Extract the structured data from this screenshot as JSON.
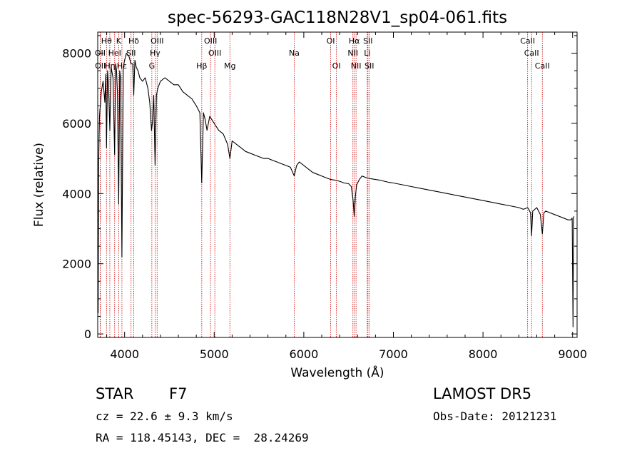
{
  "chart_data": {
    "type": "line",
    "title": "spec-56293-GAC118N28V1_sp04-061.fits",
    "xlabel": "Wavelength (Å)",
    "ylabel": "Flux (relative)",
    "xlim": [
      3700,
      9050
    ],
    "ylim": [
      -100,
      8600
    ],
    "xticks": [
      4000,
      5000,
      6000,
      7000,
      8000,
      9000
    ],
    "yticks": [
      0,
      2000,
      4000,
      6000,
      8000
    ],
    "line_color": "#000000",
    "marker_line_color": "#cc0000",
    "spectral_lines": [
      {
        "name": "Hθ",
        "wavelength": 3798,
        "row": 0
      },
      {
        "name": "K",
        "wavelength": 3934,
        "row": 0
      },
      {
        "name": "Hδ",
        "wavelength": 4102,
        "row": 0
      },
      {
        "name": "OIII",
        "wavelength": 4363,
        "row": 0
      },
      {
        "name": "OIII",
        "wavelength": 4959,
        "row": 0
      },
      {
        "name": "OI",
        "wavelength": 6300,
        "row": 0
      },
      {
        "name": "Hα",
        "wavelength": 6563,
        "row": 0
      },
      {
        "name": "SII",
        "wavelength": 6716,
        "row": 0
      },
      {
        "name": "CaII",
        "wavelength": 8498,
        "row": 0
      },
      {
        "name": "OII",
        "wavelength": 3727,
        "row": 1
      },
      {
        "name": "HeI",
        "wavelength": 3889,
        "row": 1
      },
      {
        "name": "SII",
        "wavelength": 4072,
        "row": 1
      },
      {
        "name": "Hγ",
        "wavelength": 4340,
        "row": 1
      },
      {
        "name": "OIII",
        "wavelength": 5007,
        "row": 1
      },
      {
        "name": "Na",
        "wavelength": 5893,
        "row": 1
      },
      {
        "name": "NII",
        "wavelength": 6548,
        "row": 1
      },
      {
        "name": "Li",
        "wavelength": 6708,
        "row": 1
      },
      {
        "name": "CaII",
        "wavelength": 8542,
        "row": 1
      },
      {
        "name": "OII",
        "wavelength": 3729,
        "row": 2
      },
      {
        "name": "Hη",
        "wavelength": 3835,
        "row": 2
      },
      {
        "name": "Hε",
        "wavelength": 3970,
        "row": 2
      },
      {
        "name": "G",
        "wavelength": 4304,
        "row": 2
      },
      {
        "name": "Hβ",
        "wavelength": 4861,
        "row": 2
      },
      {
        "name": "Mg",
        "wavelength": 5175,
        "row": 2
      },
      {
        "name": "OI",
        "wavelength": 6364,
        "row": 2
      },
      {
        "name": "NII",
        "wavelength": 6583,
        "row": 2
      },
      {
        "name": "SII",
        "wavelength": 6731,
        "row": 2
      },
      {
        "name": "CaII",
        "wavelength": 8662,
        "row": 2
      }
    ],
    "x": [
      3700,
      3705,
      3710,
      3715,
      3720,
      3725,
      3730,
      3735,
      3740,
      3760,
      3780,
      3790,
      3798,
      3810,
      3820,
      3835,
      3850,
      3870,
      3889,
      3900,
      3910,
      3920,
      3934,
      3945,
      3955,
      3970,
      3985,
      4000,
      4020,
      4050,
      4070,
      4090,
      4102,
      4115,
      4130,
      4150,
      4170,
      4200,
      4230,
      4260,
      4280,
      4300,
      4310,
      4325,
      4340,
      4355,
      4370,
      4400,
      4450,
      4500,
      4550,
      4600,
      4650,
      4700,
      4750,
      4800,
      4840,
      4861,
      4880,
      4900,
      4920,
      4950,
      5000,
      5050,
      5100,
      5150,
      5175,
      5200,
      5250,
      5300,
      5350,
      5400,
      5450,
      5500,
      5550,
      5600,
      5650,
      5700,
      5750,
      5800,
      5850,
      5893,
      5920,
      5950,
      6000,
      6050,
      6100,
      6150,
      6200,
      6250,
      6300,
      6350,
      6400,
      6450,
      6500,
      6530,
      6550,
      6563,
      6575,
      6590,
      6620,
      6650,
      6700,
      6750,
      6800,
      6850,
      6900,
      6950,
      7000,
      7100,
      7200,
      7300,
      7400,
      7500,
      7600,
      7700,
      7800,
      7900,
      8000,
      8100,
      8200,
      8300,
      8400,
      8450,
      8480,
      8498,
      8510,
      8530,
      8542,
      8555,
      8600,
      8640,
      8662,
      8680,
      8700,
      8750,
      8800,
      8850,
      8900,
      8950,
      8980,
      8995,
      9005,
      9010,
      9015
    ],
    "y": [
      2500,
      600,
      4800,
      5600,
      6200,
      6400,
      6500,
      6700,
      6900,
      7200,
      6600,
      7400,
      5300,
      7500,
      7100,
      5800,
      7600,
      7300,
      5100,
      7700,
      7500,
      6900,
      3700,
      7500,
      7300,
      2200,
      7600,
      7800,
      8000,
      7900,
      7700,
      7700,
      6800,
      7800,
      7600,
      7500,
      7300,
      7200,
      7300,
      7000,
      6600,
      5800,
      6000,
      6800,
      4800,
      6800,
      7000,
      7200,
      7300,
      7200,
      7100,
      7100,
      6900,
      6800,
      6700,
      6500,
      6300,
      4300,
      6300,
      6100,
      5800,
      6200,
      6000,
      5800,
      5700,
      5400,
      5000,
      5500,
      5400,
      5300,
      5200,
      5150,
      5100,
      5050,
      5000,
      5000,
      4950,
      4900,
      4850,
      4800,
      4750,
      4500,
      4800,
      4900,
      4800,
      4700,
      4600,
      4550,
      4500,
      4450,
      4400,
      4380,
      4350,
      4300,
      4280,
      4200,
      3800,
      3350,
      3900,
      4250,
      4400,
      4500,
      4450,
      4420,
      4400,
      4380,
      4350,
      4320,
      4300,
      4250,
      4200,
      4150,
      4100,
      4050,
      4000,
      3950,
      3900,
      3850,
      3800,
      3750,
      3700,
      3650,
      3600,
      3550,
      3580,
      3600,
      3550,
      3450,
      2800,
      3500,
      3600,
      3400,
      2850,
      3450,
      3500,
      3450,
      3400,
      3350,
      3300,
      3250,
      3250,
      3300,
      200,
      3300,
      3350
    ]
  },
  "info": {
    "object_class": "STAR",
    "subclass": "F7",
    "survey": "LAMOST DR5",
    "cz": "cz = 22.6 ± 9.3 km/s",
    "obs_date": "Obs-Date: 20121231",
    "coords": "RA = 118.45143, DEC =  28.24269"
  }
}
